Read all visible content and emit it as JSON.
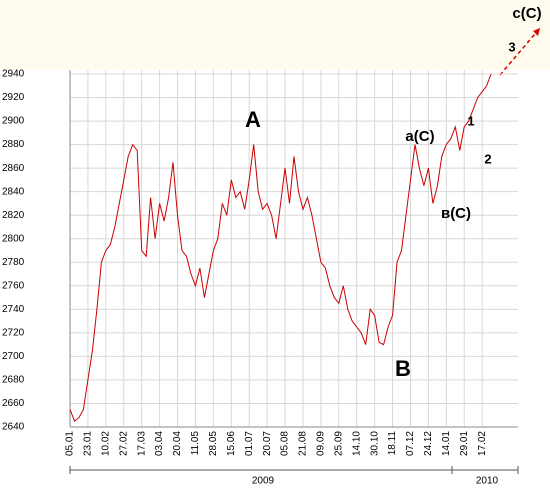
{
  "chart_data": {
    "type": "line",
    "categories": [
      "05.01",
      null,
      null,
      null,
      "23.01",
      null,
      null,
      null,
      "10.02",
      null,
      null,
      null,
      "27.02",
      null,
      null,
      null,
      "17.03",
      null,
      null,
      null,
      "03.04",
      null,
      null,
      null,
      "20.04",
      null,
      null,
      null,
      "11.05",
      null,
      null,
      null,
      "28.05",
      null,
      null,
      null,
      "15.06",
      null,
      null,
      null,
      "01.07",
      null,
      null,
      null,
      "20.07",
      null,
      null,
      null,
      "05.08",
      null,
      null,
      null,
      "21.08",
      null,
      null,
      null,
      "09.09",
      null,
      null,
      null,
      "25.09",
      null,
      null,
      null,
      "14.10",
      null,
      null,
      null,
      "30.10",
      null,
      null,
      null,
      "18.11",
      null,
      null,
      null,
      "07.12",
      null,
      null,
      null,
      "24.12",
      null,
      null,
      null,
      "14.01",
      null,
      null,
      null,
      "29.01",
      null,
      null,
      null,
      "17.02",
      null,
      null
    ],
    "values": [
      2655,
      2645,
      2648,
      2655,
      2680,
      2705,
      2740,
      2780,
      2790,
      2795,
      2810,
      2830,
      2850,
      2870,
      2880,
      2875,
      2790,
      2785,
      2835,
      2800,
      2830,
      2815,
      2835,
      2865,
      2820,
      2790,
      2785,
      2770,
      2760,
      2775,
      2750,
      2770,
      2790,
      2800,
      2830,
      2820,
      2850,
      2835,
      2840,
      2825,
      2850,
      2880,
      2840,
      2825,
      2830,
      2820,
      2800,
      2830,
      2860,
      2830,
      2870,
      2840,
      2825,
      2835,
      2820,
      2800,
      2780,
      2775,
      2760,
      2750,
      2745,
      2760,
      2740,
      2730,
      2725,
      2720,
      2710,
      2740,
      2735,
      2712,
      2710,
      2725,
      2735,
      2780,
      2790,
      2820,
      2850,
      2880,
      2860,
      2845,
      2860,
      2830,
      2845,
      2870,
      2880,
      2885,
      2895,
      2875,
      2895,
      2900,
      2910,
      2920,
      2925,
      2930,
      2940
    ],
    "color": "#cc0000",
    "ylim": [
      2640,
      2940
    ],
    "yticks": [
      2640,
      2660,
      2680,
      2700,
      2720,
      2740,
      2760,
      2780,
      2800,
      2820,
      2840,
      2860,
      2880,
      2900,
      2920,
      2940
    ],
    "grid": true,
    "annotations": [
      "A",
      "B",
      "a(C)",
      "в(C)",
      "1",
      "2",
      "3",
      "c(C)"
    ],
    "periods": [
      "2009",
      "2010"
    ]
  }
}
